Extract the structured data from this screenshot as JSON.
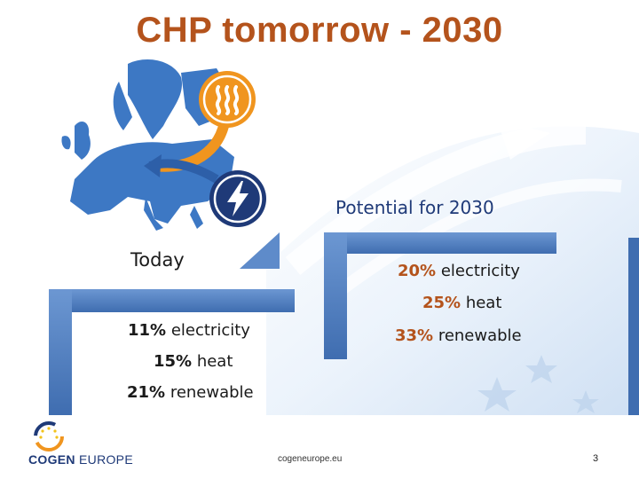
{
  "slide": {
    "title": "CHP tomorrow - 2030",
    "potential": {
      "heading": "Potential for 2030",
      "lines": [
        {
          "value": "20%",
          "text": " electricity"
        },
        {
          "value": "25%",
          "text": " heat"
        },
        {
          "value": "33%",
          "text": " renewable"
        }
      ]
    },
    "today": {
      "heading": "Today",
      "lines": [
        {
          "value": "11%",
          "text": " electricity"
        },
        {
          "value": "15%",
          "text": " heat"
        },
        {
          "value": "21%",
          "text": " renewable"
        }
      ]
    },
    "footer": {
      "url": "cogeneurope.eu",
      "page": "3",
      "logo_bold": "COGEN",
      "logo_rest": " EUROPE"
    }
  },
  "colors": {
    "title": "#b4531c",
    "navy": "#1f3a78",
    "bar_blue": "#4f7fc1",
    "orange_icon": "#f0951f"
  },
  "icons": [
    "heat-icon",
    "lightning-icon",
    "europe-map",
    "cogen-logo"
  ]
}
